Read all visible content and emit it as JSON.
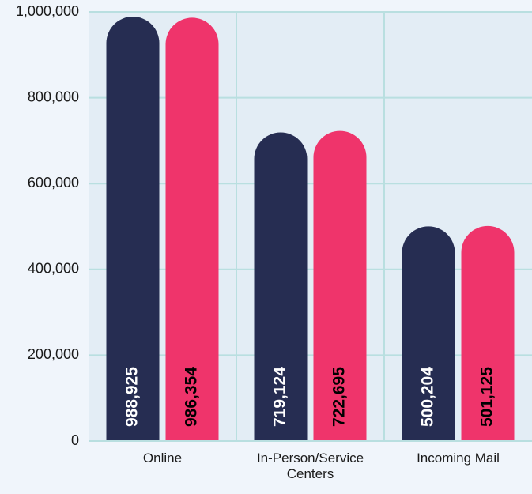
{
  "chart_data": {
    "type": "bar",
    "categories": [
      "Online",
      "In-Person/Service Centers",
      "Incoming Mail"
    ],
    "series": [
      {
        "color": "#262d52",
        "label_color": "#ffffff",
        "values": [
          988925,
          719124,
          500204
        ],
        "value_labels": [
          "988,925",
          "719,124",
          "500,204"
        ]
      },
      {
        "color": "#ef346b",
        "label_color": "#000000",
        "values": [
          986354,
          722695,
          501125
        ],
        "value_labels": [
          "986,354",
          "722,695",
          "501,125"
        ]
      }
    ],
    "ylim": [
      0,
      1000000
    ],
    "yticks": [
      0,
      {
        "value": 200000,
        "label": "200,000"
      },
      {
        "value": 400000,
        "label": "400,000"
      },
      {
        "value": 600000,
        "label": "600,000"
      },
      {
        "value": 800000,
        "label": "800,000"
      },
      {
        "value": 1000000,
        "label": "1,000,000"
      }
    ],
    "grid": true
  }
}
